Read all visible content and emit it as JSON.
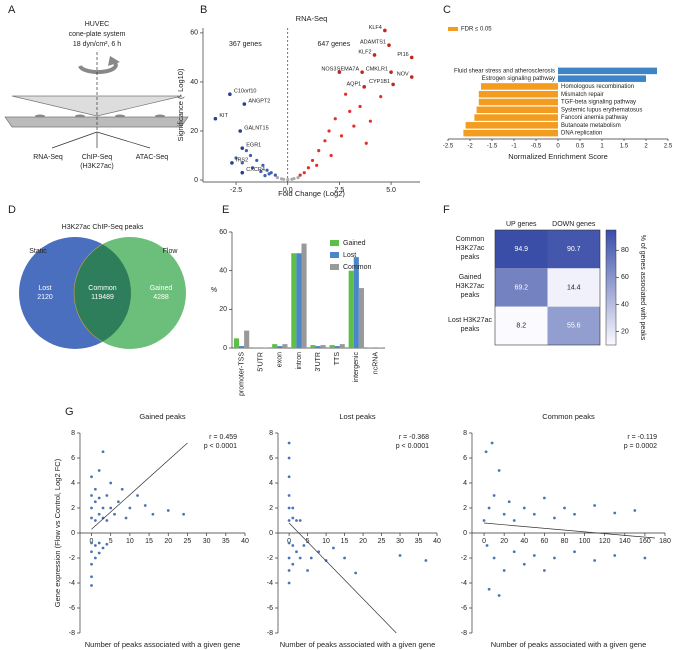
{
  "panels": [
    "A",
    "B",
    "C",
    "D",
    "E",
    "F",
    "G"
  ],
  "diagram": {
    "title": [
      "HUVEC",
      "cone-plate system",
      "18 dyn/cm², 6 h"
    ],
    "outputs": [
      "RNA-Seq",
      "ChIP-Seq",
      "ATAC-Seq"
    ],
    "output_note": "(H3K27ac)"
  },
  "chart_data": [
    {
      "type": "scatter",
      "title": "RNA-Seq",
      "xlabel": "Fold Change (Log2)",
      "ylabel": "Significance (- Log10)",
      "counts": [
        "367 genes",
        "647 genes"
      ],
      "xlim": [
        -4.1,
        6.4
      ],
      "ylim": [
        -0.8,
        62
      ],
      "xticks": [
        -2.5,
        {
          "value": 0,
          "label": "0.0"
        },
        2.5,
        {
          "value": 5,
          "label": "5.0"
        }
      ],
      "yticks": [
        0,
        20,
        40,
        60
      ],
      "series": [
        {
          "color": "#3f5fae",
          "x": [
            -0.6,
            -0.8,
            -1,
            -1.2,
            -1.5,
            -1.8,
            -2,
            -1.3,
            -1.7,
            -2.2,
            -0.9,
            -2.5,
            -1.1
          ],
          "y": [
            2,
            3,
            4,
            6,
            8,
            10,
            12,
            3.5,
            5,
            7,
            2.5,
            9,
            1.8
          ]
        },
        {
          "color": "#e5302a",
          "x": [
            0.6,
            0.8,
            1,
            1.2,
            1.5,
            1.8,
            2,
            2.3,
            2.6,
            3,
            3.2,
            2.8,
            3.5,
            4,
            1.4,
            2.1,
            4.5,
            3.8
          ],
          "y": [
            2,
            3,
            5,
            8,
            12,
            16,
            20,
            25,
            18,
            28,
            22,
            35,
            30,
            24,
            6,
            10,
            34,
            15
          ]
        },
        {
          "color": "#aaaaaa",
          "x": [
            -0.3,
            0,
            0.3,
            -0.5,
            0.5,
            -0.2,
            0.2
          ],
          "y": [
            0.5,
            0.2,
            0.6,
            1,
            1,
            0.3,
            0.3
          ]
        }
      ],
      "annotations": [
        {
          "label": "KLF4",
          "x": 4.7,
          "y": 61
        },
        {
          "label": "ADAMTS1",
          "x": 4.9,
          "y": 55
        },
        {
          "label": "PI16",
          "x": 6,
          "y": 50
        },
        {
          "label": "KLF2",
          "x": 4.2,
          "y": 51
        },
        {
          "label": "NOS3",
          "x": 2.5,
          "y": 44
        },
        {
          "label": "SEMA7A",
          "x": 3.6,
          "y": 44
        },
        {
          "label": "CMKLR1",
          "x": 5,
          "y": 44
        },
        {
          "label": "AQP1",
          "x": 3.7,
          "y": 38
        },
        {
          "label": "CYP1B1",
          "x": 5.1,
          "y": 39
        },
        {
          "label": "NOV",
          "x": 6,
          "y": 42
        },
        {
          "label": "C10orf10",
          "x": -2.8,
          "y": 35
        },
        {
          "label": "ANGPT2",
          "x": -2.1,
          "y": 31
        },
        {
          "label": "KIT",
          "x": -3.5,
          "y": 25
        },
        {
          "label": "GALNT15",
          "x": -2.3,
          "y": 20
        },
        {
          "label": "EGR1",
          "x": -2.2,
          "y": 13
        },
        {
          "label": "IRS2",
          "x": -2.7,
          "y": 7
        },
        {
          "label": "CXCR4",
          "x": -2.2,
          "y": 3
        }
      ]
    },
    {
      "type": "barh",
      "xlabel": "Normalized Enrichment Score",
      "xlim": [
        -2.5,
        2.5
      ],
      "xticks": [
        -2.5,
        -2,
        -1.5,
        -1,
        -0.5,
        0,
        0.5,
        1,
        1.5,
        2,
        2.5
      ],
      "categories": [
        "Fluid shear stress and atherosclerosis",
        "Estrogen signaling pathway",
        "Homologous recombination",
        "Mismatch repair",
        "TGF-beta signaling pathway",
        "Systemic lupus erythematosus",
        "Fanconi anemia pathway",
        "Butanoate metabolism",
        "DNA replication"
      ],
      "values": [
        2.25,
        2.0,
        -1.75,
        -1.8,
        -1.8,
        -1.85,
        -1.9,
        -2.1,
        -2.15
      ],
      "colors": [
        "#3d85c6",
        "#3d85c6",
        "#f39c1f",
        "#f39c1f",
        "#f39c1f",
        "#f39c1f",
        "#f39c1f",
        "#f39c1f",
        "#f39c1f"
      ],
      "legend": [
        {
          "name": "FDR ≤ 0.05",
          "color": "#f39c1f"
        }
      ]
    },
    {
      "type": "venn",
      "title": "H3K27ac ChIP-Seq peaks",
      "sets": [
        "Static",
        "Flow"
      ],
      "regions": [
        "Lost",
        "Common",
        "Gained"
      ],
      "values": [
        2120,
        119489,
        4288
      ],
      "colors": [
        "#4a6fbf",
        "#2e7d5b",
        "#6cbf7a"
      ]
    },
    {
      "type": "bar",
      "ylabel": "%",
      "ylim": [
        0,
        60
      ],
      "yticks": [
        0,
        20,
        40,
        60
      ],
      "categories": [
        "promoter-TSS",
        "5'UTR",
        "exon",
        "intron",
        "3'UTR",
        "TTS",
        "intergenic",
        "ncRNA"
      ],
      "series": [
        {
          "name": "Gained",
          "color": "#5cbf47",
          "values": [
            5,
            0.3,
            2,
            49,
            1.5,
            1.5,
            40,
            0.2
          ]
        },
        {
          "name": "Lost",
          "color": "#4a86c8",
          "values": [
            1,
            0.2,
            1,
            49,
            1,
            1,
            47,
            0.1
          ]
        },
        {
          "name": "Common",
          "color": "#999999",
          "values": [
            9,
            0.3,
            2,
            54,
            1.5,
            2,
            31,
            0.2
          ]
        }
      ]
    },
    {
      "type": "heatmap",
      "columns": [
        "UP genes",
        "DOWN genes"
      ],
      "rows": [
        "Common H3K27ac peaks",
        "Gained H3K27ac peaks",
        "Lost H3K27ac peaks"
      ],
      "values": [
        [
          94.9,
          90.7
        ],
        [
          69.2,
          14.4
        ],
        [
          8.2,
          55.6
        ]
      ],
      "clim": [
        10,
        95
      ],
      "cticks": [
        20,
        40,
        60,
        80
      ],
      "colorbar_label": "% of genes associated with peaks"
    },
    {
      "type": "scatter",
      "title": "Gained peaks",
      "stats": [
        "r = 0.459",
        "p < 0.0001"
      ],
      "xlabel": "Number of peaks associated with a given gene",
      "ylabel": "Gene expression (Flow vs Control, Log2 FC)",
      "xlim": [
        -3,
        40
      ],
      "ylim": [
        -8,
        8
      ],
      "xticks": [
        0,
        5,
        10,
        15,
        20,
        25,
        30,
        35,
        40
      ],
      "yticks": [
        -8,
        -6,
        -4,
        -2,
        0,
        2,
        4,
        6,
        8
      ],
      "series": [
        {
          "color": "#4a74b8",
          "x": [
            0,
            0,
            0,
            0,
            1,
            1,
            1,
            2,
            2,
            2,
            3,
            3,
            3,
            4,
            4,
            5,
            5,
            6,
            7,
            8,
            9,
            10,
            12,
            14,
            16,
            20,
            24,
            0,
            0,
            0,
            0,
            0,
            1,
            1,
            2,
            2,
            3,
            4
          ],
          "y": [
            1.2,
            2,
            3,
            4.5,
            1,
            2.5,
            3.5,
            1.5,
            2.8,
            5,
            1.2,
            2,
            6.5,
            1,
            3,
            2,
            4,
            1.5,
            2.5,
            3.5,
            1.2,
            2,
            3,
            2.2,
            1.5,
            1.8,
            1.5,
            -0.8,
            -1.5,
            -2.5,
            -3.5,
            -4.2,
            -1,
            -2,
            -0.8,
            -1.6,
            -1.2,
            -0.9
          ]
        }
      ],
      "fit": {
        "x": [
          0,
          25
        ],
        "y": [
          0.3,
          7.2
        ]
      }
    },
    {
      "type": "scatter",
      "title": "Lost peaks",
      "stats": [
        "r = -0.368",
        "p < 0.0001"
      ],
      "xlabel": "Number of peaks associated with a given gene",
      "xlim": [
        -3,
        40
      ],
      "ylim": [
        -8,
        8
      ],
      "xticks": [
        0,
        5,
        10,
        15,
        20,
        25,
        30,
        35,
        40
      ],
      "yticks": [
        -8,
        -6,
        -4,
        -2,
        0,
        2,
        4,
        6,
        8
      ],
      "series": [
        {
          "color": "#4a74b8",
          "x": [
            0,
            0,
            0,
            0,
            0,
            0,
            1,
            1,
            2,
            3,
            0,
            0,
            0,
            0,
            1,
            1,
            2,
            3,
            4,
            5,
            6,
            8,
            10,
            12,
            15,
            18,
            30,
            37
          ],
          "y": [
            1,
            2,
            3,
            4.5,
            6,
            7.2,
            1.2,
            2,
            1,
            1,
            -0.8,
            -2,
            -3,
            -4,
            -1,
            -2.5,
            -1.5,
            -2,
            -1,
            -3,
            -2,
            -1.5,
            -2.2,
            -1.2,
            -2,
            -3.2,
            -1.8,
            -2.2
          ]
        }
      ],
      "fit": {
        "x": [
          0,
          29
        ],
        "y": [
          0.8,
          -8
        ]
      }
    },
    {
      "type": "scatter",
      "title": "Common peaks",
      "stats": [
        "r = -0.119",
        "p = 0.0002"
      ],
      "xlabel": "Number of peaks associated with a given gene",
      "xlim": [
        -12,
        180
      ],
      "ylim": [
        -8,
        8
      ],
      "xticks": [
        0,
        20,
        40,
        60,
        80,
        100,
        120,
        140,
        160,
        180
      ],
      "yticks": [
        -8,
        -6,
        -4,
        -2,
        0,
        2,
        4,
        6,
        8
      ],
      "series": [
        {
          "color": "#4a74b8",
          "x": [
            0,
            5,
            10,
            15,
            20,
            25,
            30,
            40,
            50,
            60,
            70,
            80,
            90,
            110,
            130,
            150,
            2,
            8,
            3,
            10,
            20,
            30,
            40,
            50,
            60,
            70,
            90,
            110,
            130,
            160,
            5,
            15
          ],
          "y": [
            1,
            2,
            3,
            5,
            1.5,
            2.5,
            1,
            2,
            1.5,
            2.8,
            1.2,
            2,
            1.5,
            2.2,
            1.6,
            1.8,
            6.5,
            7.2,
            -1,
            -2,
            -3,
            -1.5,
            -2.5,
            -1.8,
            -3,
            -2,
            -1.5,
            -2.2,
            -1.8,
            -2,
            -4.5,
            -5
          ]
        }
      ],
      "fit": {
        "x": [
          0,
          170
        ],
        "y": [
          0.8,
          -0.4
        ]
      }
    }
  ]
}
